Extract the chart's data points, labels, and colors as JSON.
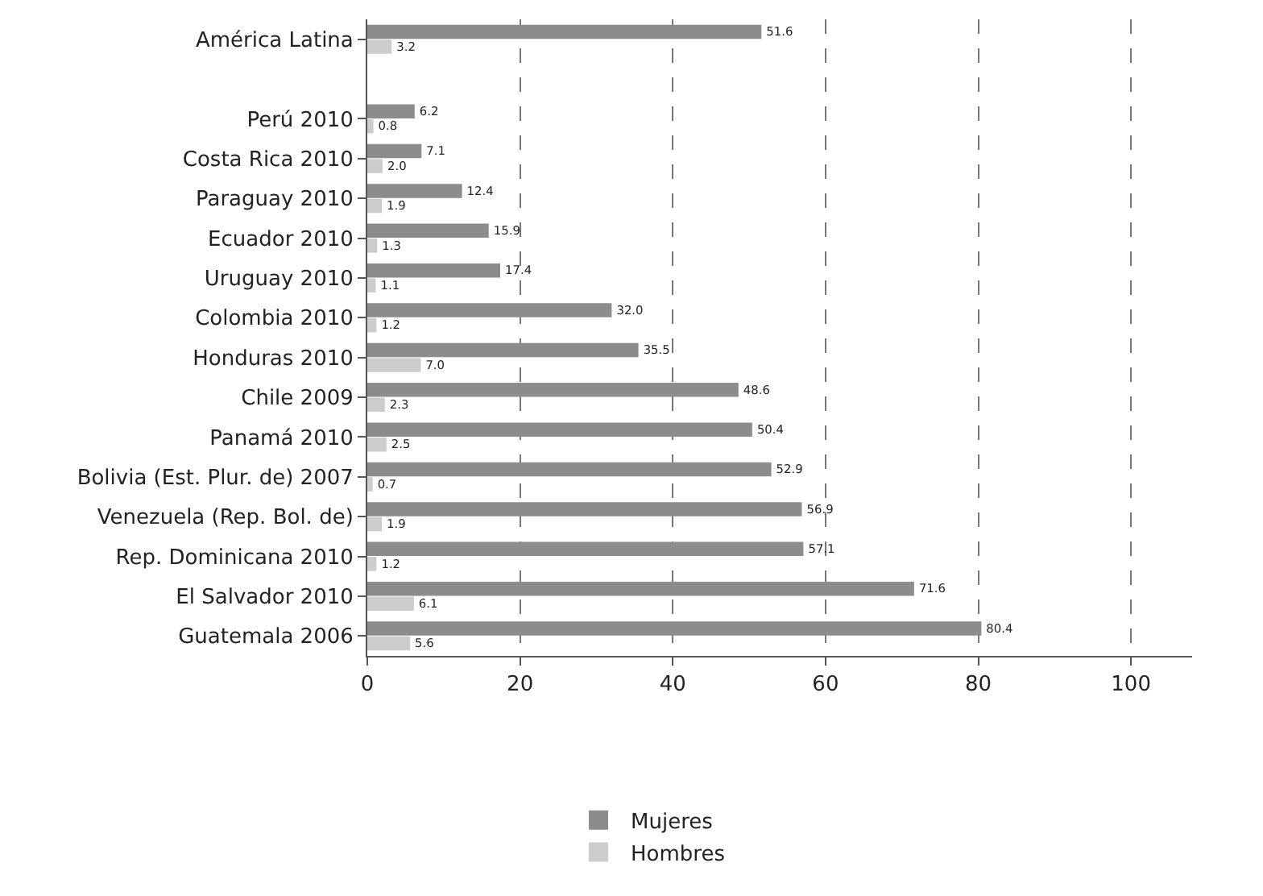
{
  "chart_data": {
    "type": "bar",
    "orientation": "horizontal",
    "categories": [
      "América Latina",
      null,
      "Perú 2010",
      "Costa Rica 2010",
      "Paraguay 2010",
      "Ecuador 2010",
      "Uruguay 2010",
      "Colombia 2010",
      "Honduras 2010",
      "Chile 2009",
      "Panamá 2010",
      "Bolivia (Est. Plur. de) 2007",
      "Venezuela (Rep. Bol. de)",
      "Rep. Dominicana 2010",
      "El Salvador 2010",
      "Guatemala 2006"
    ],
    "series": [
      {
        "name": "Mujeres",
        "color": "#8c8c8c",
        "values": [
          51.6,
          null,
          6.2,
          7.1,
          12.4,
          15.9,
          17.4,
          32.0,
          35.5,
          48.6,
          50.4,
          52.9,
          56.9,
          57.1,
          71.6,
          80.4
        ],
        "value_labels": [
          "51.6",
          null,
          "6.2",
          "7.1",
          "12.4",
          "15.9",
          "17.4",
          "32.0",
          "35.5",
          "48.6",
          "50.4",
          "52.9",
          "56.9",
          "57.1",
          "71.6",
          "80.4"
        ]
      },
      {
        "name": "Hombres",
        "color": "#cccccc",
        "values": [
          3.2,
          null,
          0.8,
          2.0,
          1.9,
          1.3,
          1.1,
          1.2,
          7.0,
          2.3,
          2.5,
          0.7,
          1.9,
          1.2,
          6.1,
          5.6
        ],
        "value_labels": [
          "3.2",
          null,
          "0.8",
          "2.0",
          "1.9",
          "1.3",
          "1.1",
          "1.2",
          "7.0",
          "2.3",
          "2.5",
          "0.7",
          "1.9",
          "1.2",
          "6.1",
          "5.6"
        ]
      }
    ],
    "xlim": [
      0,
      108
    ],
    "xticks": [
      0,
      20,
      40,
      60,
      80,
      100
    ],
    "grid": "x",
    "line_style": "dashed",
    "legend": "bottom"
  }
}
